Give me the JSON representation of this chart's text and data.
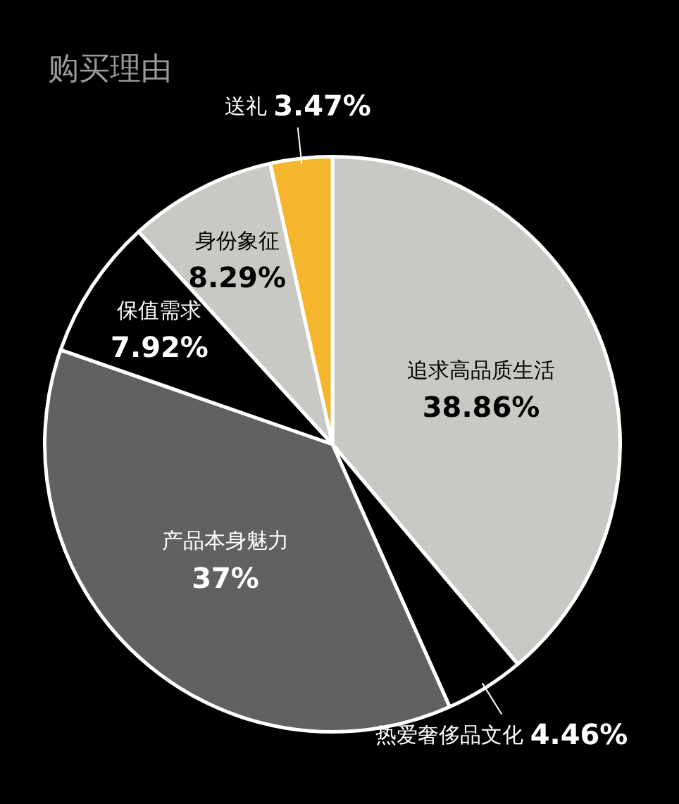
{
  "chart_data": {
    "type": "pie",
    "title": "购买理由",
    "categories": [
      "追求高品质生活",
      "热爱奢侈品文化",
      "产品本身魅力",
      "保值需求",
      "身份象征",
      "送礼"
    ],
    "values": [
      38.86,
      4.46,
      37,
      7.92,
      8.29,
      3.47
    ],
    "value_labels": [
      "38.86%",
      "4.46%",
      "37%",
      "7.92%",
      "8.29%",
      "3.47%"
    ],
    "colors": [
      "#c8c8c4",
      "#000000",
      "#616161",
      "#000000",
      "#c8c8c4",
      "#f5b52e"
    ],
    "legend": false
  }
}
